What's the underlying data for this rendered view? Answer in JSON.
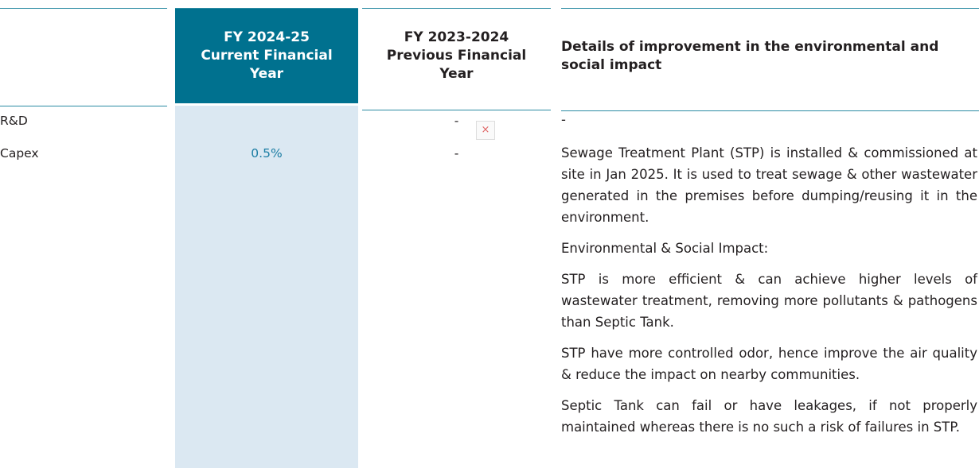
{
  "table": {
    "header": [
      "FY 2024-25 Current Financial Year",
      "FY 2023-2024 Previous Financial Year",
      "Details of improvement in the environmental and social impact"
    ],
    "rows": [
      {
        "label": "R&D",
        "previous": "-",
        "details": [
          "-"
        ]
      },
      {
        "label": "Capex",
        "current": "0.5%",
        "previous": "-",
        "details": [
          "Sewage Treatment Plant (STP) is installed & commissioned at site in Jan 2025. It is used to treat sewage & other wastewater generated in the premises before dumping/reusing it in the environment.",
          "Environmental & Social Impact:",
          "STP is more efficient & can achieve higher levels of wastewater treatment, removing more pollutants & pathogens than Septic Tank.",
          "STP have more controlled odor, hence improve the air quality & reduce the impact on nearby communities.",
          "Septic Tank can fail or have leakages, if not properly maintained whereas there is no such a risk of failures in STP."
        ]
      }
    ]
  }
}
